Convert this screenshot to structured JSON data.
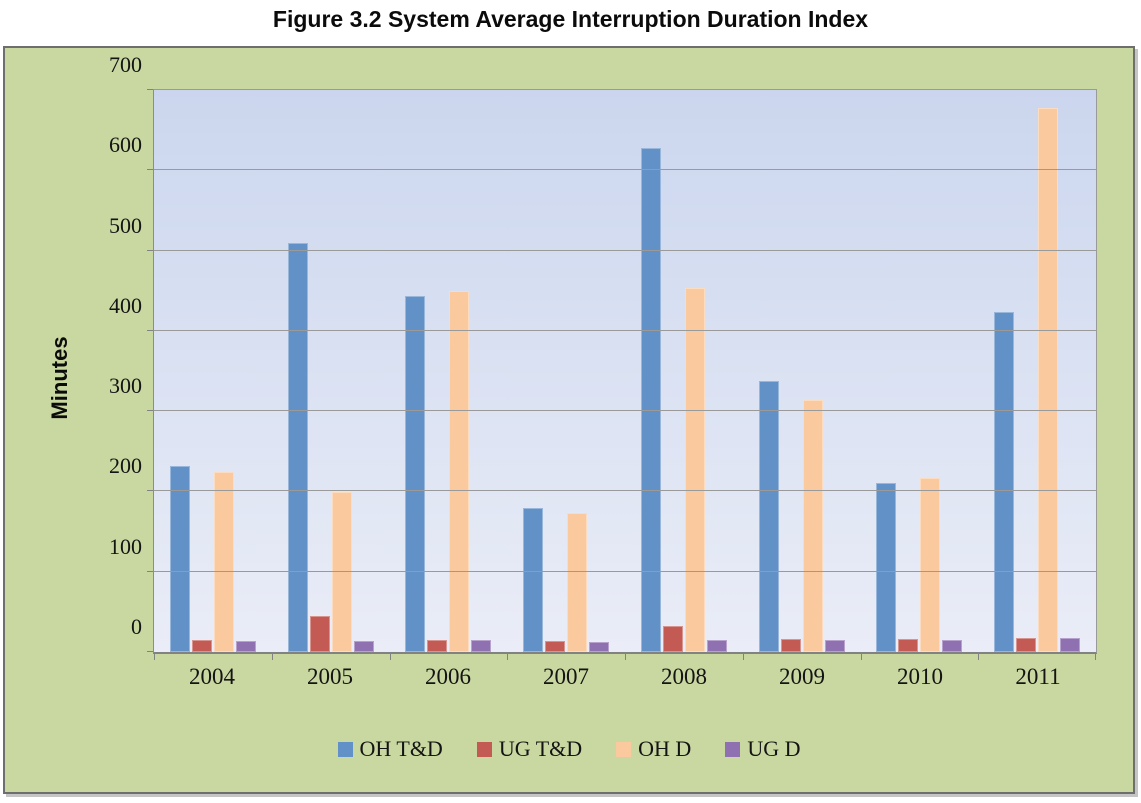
{
  "title": "Figure 3.2 System Average Interruption Duration Index",
  "chart_data": {
    "type": "bar",
    "title": "Figure 3.2 System Average Interruption Duration Index",
    "categories": [
      "2004",
      "2005",
      "2006",
      "2007",
      "2008",
      "2009",
      "2010",
      "2011"
    ],
    "series": [
      {
        "name": "OH T&D",
        "color": "#6191C6",
        "values": [
          232,
          509,
          443,
          180,
          628,
          338,
          210,
          423
        ]
      },
      {
        "name": "UG T&D",
        "color": "#C35B54",
        "values": [
          15,
          45,
          15,
          14,
          33,
          16,
          16,
          18
        ]
      },
      {
        "name": "OH D",
        "color": "#FACA9E",
        "values": [
          224,
          199,
          450,
          173,
          454,
          314,
          217,
          677
        ]
      },
      {
        "name": "UG D",
        "color": "#8F70B1",
        "values": [
          14,
          14,
          15,
          13,
          15,
          15,
          15,
          18
        ]
      }
    ],
    "xlabel": "",
    "ylabel": "Minutes",
    "ylim": [
      0,
      700
    ],
    "ytick_step": 100,
    "grid": true,
    "legend_position": "bottom"
  },
  "style": {
    "panel_background": "#C9D7A0",
    "plot_gradient_top": "#CBD6EE",
    "plot_gradient_bottom": "#EAEDF7",
    "gridline_color": "#9A9A9A",
    "text_color": "#141414"
  }
}
